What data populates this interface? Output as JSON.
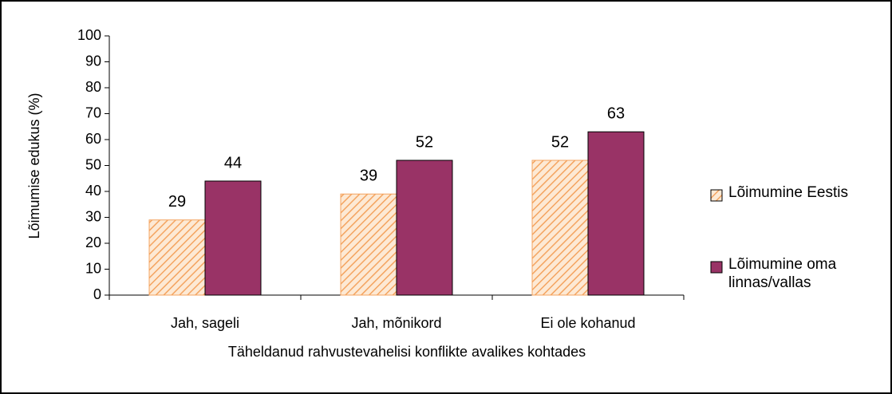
{
  "chart_data": {
    "type": "bar",
    "y_label": "Lõimumise edukus (%)",
    "x_label": "Täheldanud rahvustevahelisi konflikte avalikes kohtades",
    "categories": [
      "Jah, sageli",
      "Jah, mõnikord",
      "Ei ole kohanud"
    ],
    "series": [
      {
        "name": "Lõimumine Eestis",
        "color": "#f4a460",
        "values": [
          29,
          39,
          52
        ]
      },
      {
        "name": "Lõimumine oma linnas/vallas",
        "color": "#993366",
        "values": [
          44,
          52,
          63
        ]
      }
    ],
    "ylim": [
      0,
      100
    ],
    "yticks": [
      0,
      10,
      20,
      30,
      40,
      50,
      60,
      70,
      80,
      90,
      100
    ],
    "legend": "right"
  }
}
